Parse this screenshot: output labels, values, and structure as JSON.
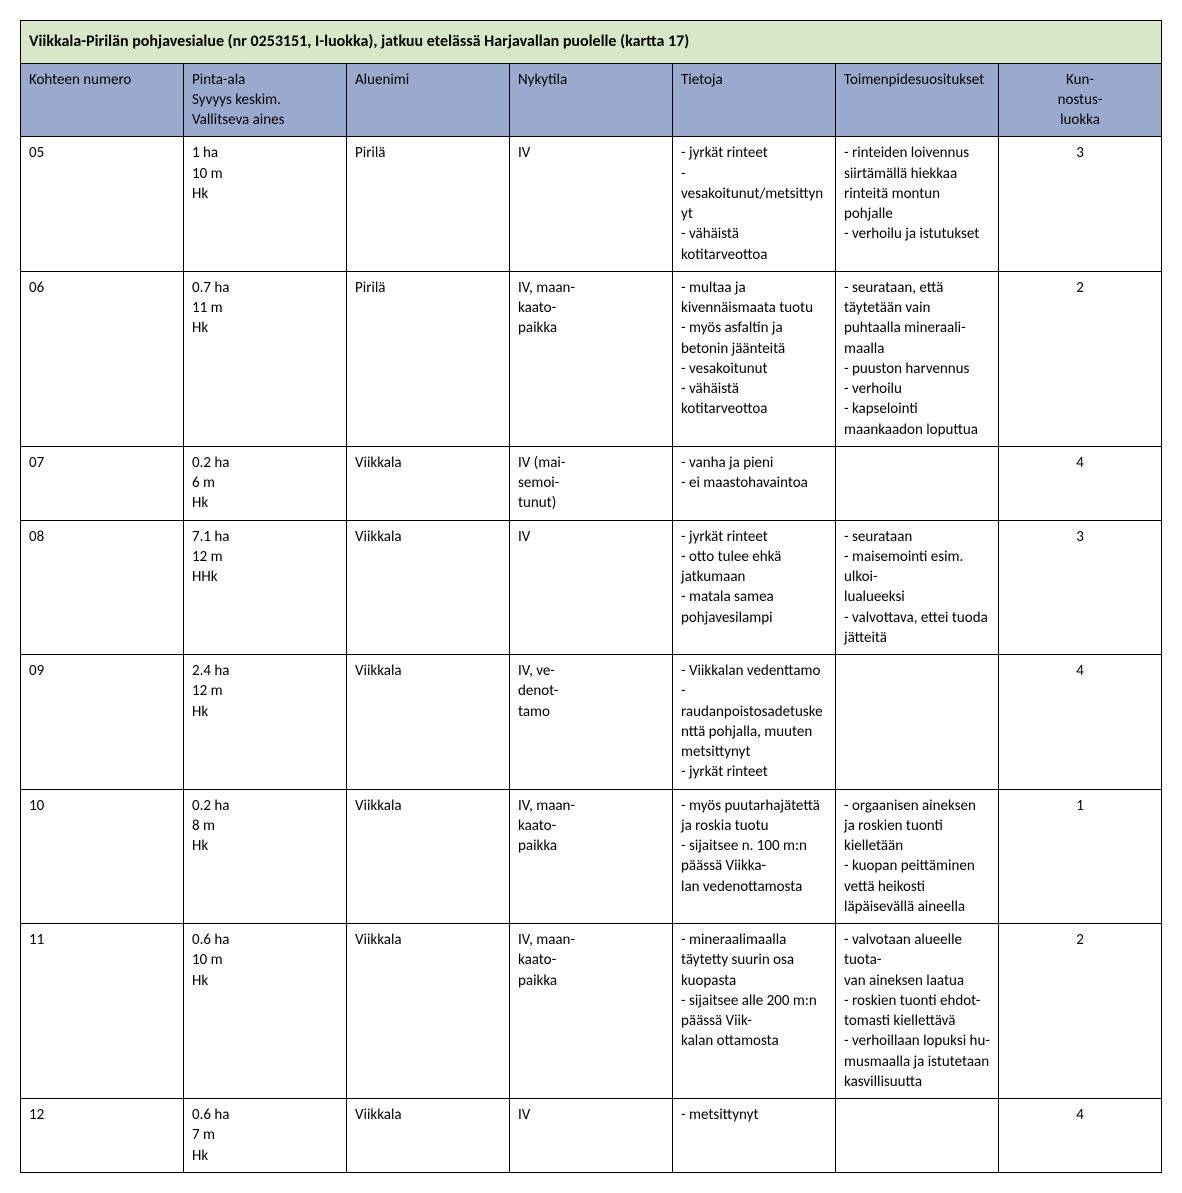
{
  "colors": {
    "title_bg": "#d6e8c8",
    "header_bg": "#9aa9ce",
    "border": "#000000",
    "text": "#000000",
    "page_bg": "#ffffff"
  },
  "title": "Viikkala-Pirilän pohjavesialue (nr 0253151, I-luokka), jatkuu etelässä Harjavallan puolelle (kartta 17)",
  "columns": [
    "Kohteen numero",
    "Pinta-ala\nSyvyys keskim.\nVallitseva aines",
    "Aluenimi",
    "Nykytila",
    "Tietoja",
    "Toimenpidesuositukset",
    "Kun-\nnostus-\nluokka"
  ],
  "rows": [
    {
      "num": "05",
      "area": "1 ha\n10 m\nHk",
      "name": "Pirilä",
      "state": "IV",
      "info": "- jyrkät rinteet\n- vesakoitunut/metsittynyt\n- vähäistä kotitarveottoa",
      "action": "- rinteiden loivennus siirtämällä hiekkaa rinteitä montun pohjalle\n- verhoilu ja istutukset",
      "class": "3"
    },
    {
      "num": "06",
      "area": "0.7 ha\n11 m\nHk",
      "name": "Pirilä",
      "state": "IV, maan-\nkaato-\npaikka",
      "info": "- multaa ja kivennäismaata tuotu\n- myös asfaltin ja betonin jäänteitä\n- vesakoitunut\n- vähäistä kotitarveottoa",
      "action": "- seurataan, että täytetään vain puhtaalla mineraali-\nmaalla\n- puuston harvennus\n- verhoilu\n- kapselointi maankaadon loputtua",
      "class": "2"
    },
    {
      "num": "07",
      "area": "0.2 ha\n6 m\nHk",
      "name": "Viikkala",
      "state": "IV (mai-\nsemoi-\ntunut)",
      "info": "- vanha ja pieni\n- ei maastohavaintoa",
      "action": "",
      "class": "4"
    },
    {
      "num": "08",
      "area": "7.1 ha\n12 m\nHHk",
      "name": "Viikkala",
      "state": "IV",
      "info": "- jyrkät rinteet\n- otto tulee ehkä jatkumaan\n- matala samea pohjavesilampi",
      "action": "- seurataan\n- maisemointi esim. ulkoi-\nlualueeksi\n- valvottava, ettei tuoda jätteitä",
      "class": "3"
    },
    {
      "num": "09",
      "area": "2.4 ha\n12 m\nHk",
      "name": "Viikkala",
      "state": "IV, ve-\ndenot-\ntamo",
      "info": "- Viikkalan vedenttamo\n- raudanpoistosadetuskenttä pohjalla, muuten metsittynyt\n- jyrkät rinteet",
      "action": "",
      "class": "4"
    },
    {
      "num": "10",
      "area": "0.2 ha\n8 m\nHk",
      "name": "Viikkala",
      "state": "IV, maan-\nkaato-\npaikka",
      "info": "- myös puutarhajätettä ja roskia tuotu\n- sijaitsee n. 100 m:n päässä Viikka-\nlan vedenottamosta",
      "action": "- orgaanisen aineksen ja roskien tuonti kielletään\n- kuopan peittäminen vettä heikosti läpäisevällä aineella",
      "class": "1"
    },
    {
      "num": "11",
      "area": "0.6 ha\n10 m\nHk",
      "name": "Viikkala",
      "state": "IV, maan-\nkaato-\npaikka",
      "info": "- mineraalimaalla täytetty suurin osa kuopasta\n- sijaitsee alle 200 m:n päässä Viik-\nkalan ottamosta",
      "action": "- valvotaan alueelle tuota-\nvan aineksen laatua\n- roskien tuonti ehdot-\ntomasti kiellettävä\n- verhoillaan lopuksi hu-\nmusmaalla ja istutetaan kasvillisuutta",
      "class": "2"
    },
    {
      "num": "12",
      "area": "0.6 ha\n7 m\nHk",
      "name": "Viikkala",
      "state": "IV",
      "info": "- metsittynyt",
      "action": "",
      "class": "4"
    }
  ]
}
